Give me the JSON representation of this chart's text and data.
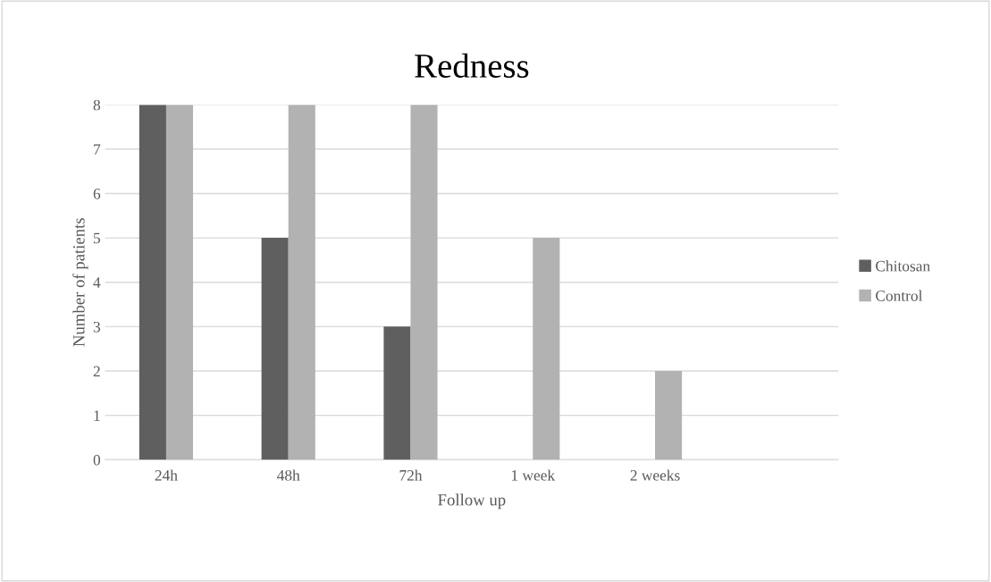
{
  "chart_data": {
    "type": "bar",
    "title": "Redness",
    "xlabel": "Follow up",
    "ylabel": "Number of patients",
    "categories": [
      "24h",
      "48h",
      "72h",
      "1 week",
      "2 weeks",
      null
    ],
    "series": [
      {
        "name": "Chitosan",
        "color": "#5f5f5f",
        "values": [
          8,
          5,
          3,
          0,
          0,
          0
        ]
      },
      {
        "name": "Control",
        "color": "#b2b2b2",
        "values": [
          8,
          8,
          8,
          5,
          2,
          0
        ]
      }
    ],
    "ylim": [
      0,
      8
    ],
    "yticks": [
      0,
      1,
      2,
      3,
      4,
      5,
      6,
      7,
      8
    ],
    "grid": "y",
    "legend": "right"
  }
}
